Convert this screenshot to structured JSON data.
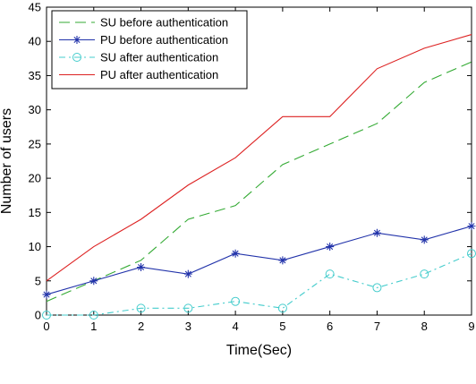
{
  "chart_data": {
    "type": "line",
    "xlabel": "Time(Sec)",
    "ylabel": "Number of users",
    "xlim": [
      0,
      9
    ],
    "ylim": [
      0,
      45
    ],
    "x_ticks": [
      0,
      1,
      2,
      3,
      4,
      5,
      6,
      7,
      8,
      9
    ],
    "y_ticks": [
      0,
      5,
      10,
      15,
      20,
      25,
      30,
      35,
      40,
      45
    ],
    "grid": false,
    "legend_position": "top-left",
    "x": [
      0,
      1,
      2,
      3,
      4,
      5,
      6,
      7,
      8,
      9
    ],
    "series": [
      {
        "name": "SU before authentication",
        "values": [
          2,
          5,
          8,
          14,
          16,
          22,
          25,
          28,
          34,
          37
        ],
        "color": "#33aa33",
        "dash": "dashed",
        "marker": "none"
      },
      {
        "name": "PU before authentication",
        "values": [
          3,
          5,
          7,
          6,
          9,
          8,
          10,
          12,
          11,
          13
        ],
        "color": "#2233aa",
        "dash": "solid",
        "marker": "star"
      },
      {
        "name": "SU after authentication",
        "values": [
          0,
          0,
          1,
          1,
          2,
          1,
          6,
          4,
          6,
          9
        ],
        "color": "#44cccc",
        "dash": "dashdot",
        "marker": "circle"
      },
      {
        "name": "PU after authentication",
        "values": [
          5,
          10,
          14,
          19,
          23,
          29,
          29,
          36,
          39,
          41
        ],
        "color": "#dd2222",
        "dash": "solid",
        "marker": "none"
      }
    ]
  }
}
